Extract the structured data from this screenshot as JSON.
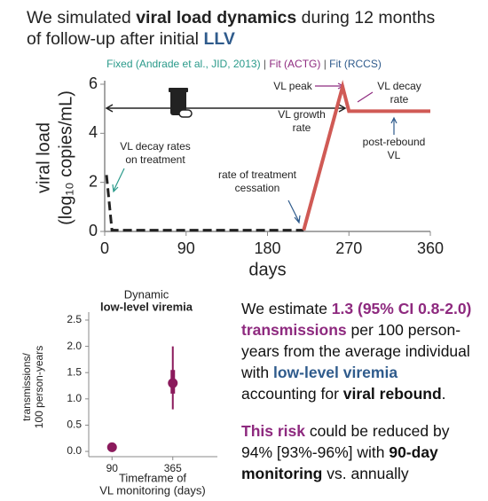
{
  "header": {
    "runs": [
      {
        "text": "We simulated "
      },
      {
        "text": "viral load dynamics",
        "bold": true
      },
      {
        "text": " during 12 months of follow-up after initial "
      },
      {
        "text": "LLV",
        "bold": true,
        "color": "#2f5b8c"
      }
    ]
  },
  "chart_data": [
    {
      "type": "line",
      "subtitle_parts": [
        {
          "text": "Fixed (Andrade et al., JID, 2013)",
          "color": "#2a9a8a"
        },
        {
          "text": " | ",
          "color": "#555555"
        },
        {
          "text": "Fit (ACTG)",
          "color": "#8e2a7f"
        },
        {
          "text": " | ",
          "color": "#555555"
        },
        {
          "text": "Fit (RCCS)",
          "color": "#2f5b8c"
        }
      ],
      "y_label": [
        "viral load",
        "(log₁₀ copies/mL)"
      ],
      "x_label": "days",
      "xlim": [
        0,
        360
      ],
      "xticks": [
        0,
        90,
        180,
        270,
        360
      ],
      "ylim": [
        0,
        6
      ],
      "yticks": [
        0,
        2,
        4,
        6
      ],
      "series": [
        {
          "color": "#222222",
          "dash": true,
          "x": [
            2,
            8,
            12,
            220
          ],
          "values": [
            2.3,
            0.05,
            0.05,
            0.05
          ]
        },
        {
          "color": "#d05a55",
          "dash": false,
          "x": [
            220,
            263,
            270,
            360
          ],
          "values": [
            0.05,
            5.9,
            4.9,
            4.9
          ]
        }
      ],
      "annotations": [
        {
          "text": [
            "VL peak"
          ],
          "color": "#8e2a7f"
        },
        {
          "text": [
            "VL decay",
            "rate"
          ],
          "color": "#8e2a7f"
        },
        {
          "text": [
            "VL growth",
            "rate"
          ],
          "color": "#8e2a7f"
        },
        {
          "text": [
            "post-rebound",
            "VL"
          ],
          "color": "#2f5b8c"
        },
        {
          "text": [
            "rate of treatment",
            "cessation"
          ],
          "color": "#2f5b8c"
        },
        {
          "text": [
            "VL decay rates",
            "on treatment"
          ],
          "color": "#2a9a8a"
        }
      ]
    },
    {
      "type": "pointrange",
      "title_lines": [
        {
          "text": "Dynamic",
          "color": "#222222",
          "bold": false
        },
        {
          "text": "low-level viremia",
          "color": "#2f5b8c",
          "bold": true
        }
      ],
      "y_label": [
        "transmissions/",
        "100 person-years"
      ],
      "x_label": [
        "Timeframe of",
        "VL monitoring (days)"
      ],
      "categories": [
        "90",
        "365"
      ],
      "values": [
        0.08,
        1.3
      ],
      "error_lower": [
        null,
        0.8
      ],
      "error_upper": [
        null,
        2.0
      ],
      "inner_lower": [
        null,
        1.1
      ],
      "inner_upper": [
        null,
        1.55
      ],
      "color": "#8b1a5c",
      "ylim": [
        -0.1,
        2.55
      ],
      "yticks": [
        {
          "value": 0,
          "label": "0.0"
        },
        {
          "value": 0.5,
          "label": "0.5"
        },
        {
          "value": 1,
          "label": "1.0"
        },
        {
          "value": 1.5,
          "label": "1.5"
        },
        {
          "value": 2,
          "label": "2.0"
        },
        {
          "value": 2.5,
          "label": "2.5"
        }
      ]
    }
  ],
  "body": {
    "paragraphs": [
      {
        "runs": [
          {
            "text": "We estimate "
          },
          {
            "text": "1.3 (95% CI 0.8-2.0) transmissions",
            "bold": true,
            "color": "#8e2a7f"
          },
          {
            "text": " per 100 person-years from the average individual with "
          },
          {
            "text": "low-level viremia",
            "bold": true,
            "color": "#2f5b8c"
          },
          {
            "text": " accounting for "
          },
          {
            "text": "viral rebound",
            "bold": true
          },
          {
            "text": "."
          }
        ]
      },
      {
        "runs": [
          {
            "text": "This risk",
            "bold": true,
            "color": "#8e2a7f"
          },
          {
            "text": " could be reduced by 94% [93%-96%] with "
          },
          {
            "text": "90-day monitoring",
            "bold": true
          },
          {
            "text": " vs. annually"
          }
        ]
      }
    ]
  }
}
